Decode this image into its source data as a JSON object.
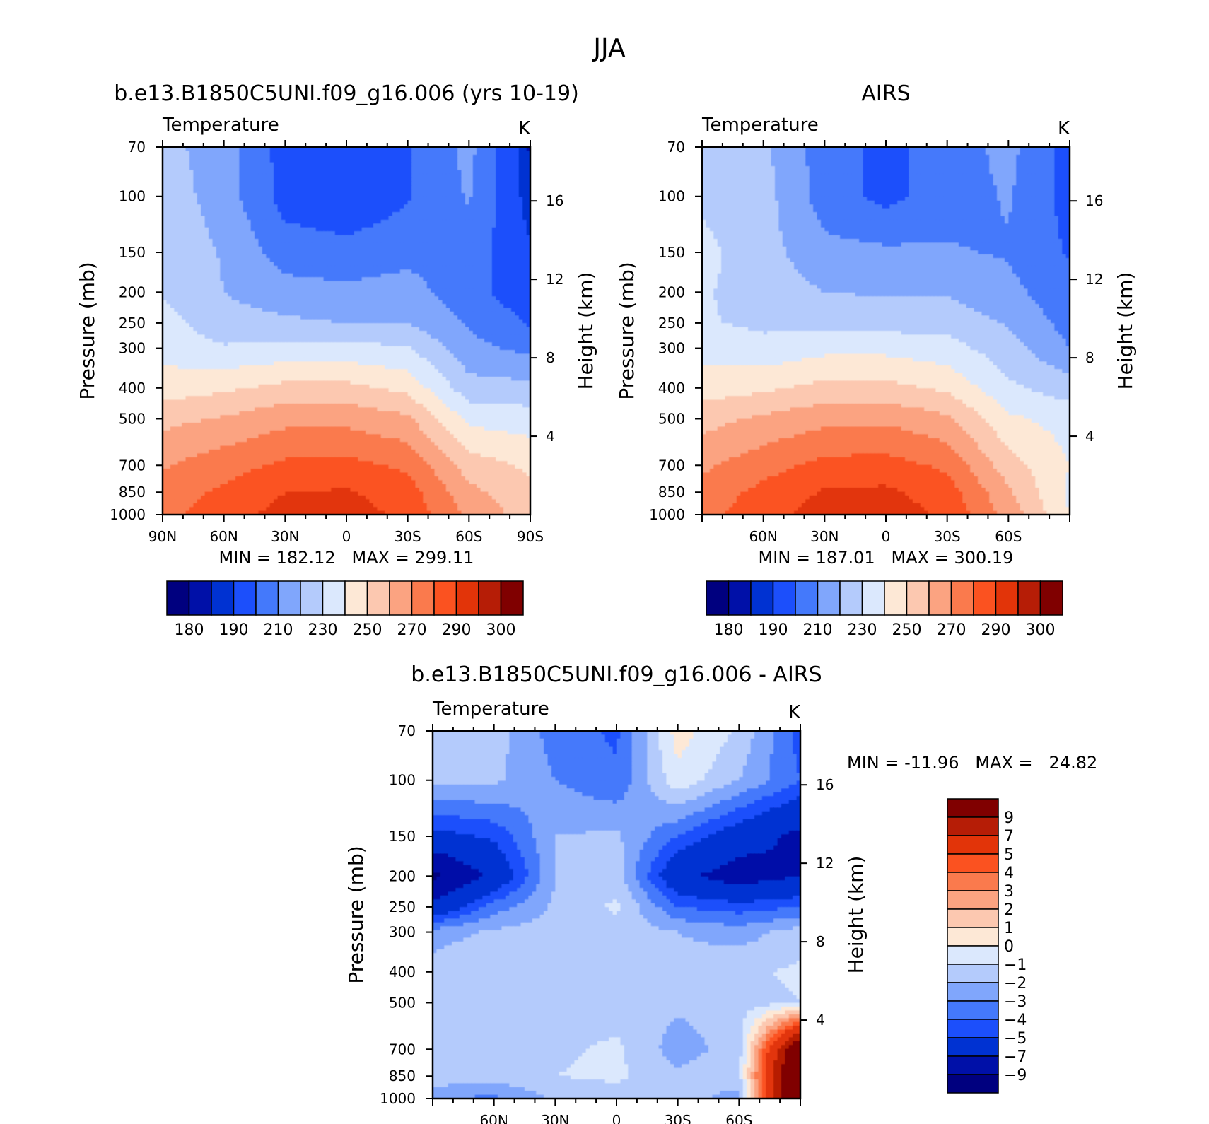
{
  "page": {
    "title": "JJA"
  },
  "chart_data": [
    {
      "type": "heatmap",
      "title": "b.e13.B1850C5UNI.f09_g16.006 (yrs 10-19)",
      "subtitle_left": "Temperature",
      "subtitle_right": "K",
      "xlabel": "",
      "ylabel": "Pressure (mb)",
      "y2label": "Height (km)",
      "x_tick_labels": [
        "90N",
        "60N",
        "30N",
        "0",
        "30S",
        "60S",
        "90S"
      ],
      "x_tick_values": [
        90,
        60,
        30,
        0,
        -30,
        -60,
        -90
      ],
      "y_tick_labels": [
        "70",
        "100",
        "150",
        "200",
        "250",
        "300",
        "400",
        "500",
        "700",
        "850",
        "1000"
      ],
      "y_tick_values": [
        70,
        100,
        150,
        200,
        250,
        300,
        400,
        500,
        700,
        850,
        1000
      ],
      "y2_tick_labels": [
        "4",
        "8",
        "12",
        "16"
      ],
      "y2_tick_values": [
        4,
        8,
        12,
        16
      ],
      "xlim": [
        90,
        -90
      ],
      "ylim": [
        1000,
        70
      ],
      "y_scale": "log",
      "stats_text": "MIN = 182.12   MAX = 299.11",
      "min": 182.12,
      "max": 299.11,
      "colorbar_labels": [
        "180",
        "190",
        "210",
        "230",
        "250",
        "270",
        "290",
        "300"
      ],
      "levels": [
        180,
        185,
        190,
        200,
        210,
        220,
        230,
        240,
        250,
        260,
        270,
        280,
        290,
        295,
        300
      ],
      "colors": [
        "#00007f",
        "#0010a8",
        "#0032d2",
        "#1c4ffb",
        "#4479fb",
        "#80a6fc",
        "#b4cbfc",
        "#dbe8fd",
        "#fde8d6",
        "#fcc8b0",
        "#fba381",
        "#fa7a4d",
        "#fb5220",
        "#e23409",
        "#b61d06",
        "#800000"
      ],
      "field": "model",
      "x": [
        90,
        60,
        30,
        0,
        -30,
        -60,
        -90
      ],
      "y": [
        70,
        100,
        150,
        200,
        250,
        300,
        400,
        500,
        700,
        850,
        1000
      ],
      "z": [
        [
          224,
          214,
          196,
          191,
          199,
          213,
          184
        ],
        [
          226,
          215,
          196,
          191,
          199,
          211,
          186
        ],
        [
          228,
          219,
          205,
          204,
          207,
          205,
          191
        ],
        [
          229,
          220,
          214,
          212,
          214,
          204,
          193
        ],
        [
          234,
          224,
          222,
          220,
          220,
          209,
          199
        ],
        [
          236,
          231,
          233,
          233,
          231,
          213,
          207
        ],
        [
          245,
          248,
          253,
          253,
          247,
          224,
          223
        ],
        [
          257,
          261,
          267,
          267,
          262,
          237,
          235
        ],
        [
          269,
          276,
          282,
          283,
          278,
          255,
          248
        ],
        [
          275,
          282,
          290,
          291,
          285,
          263,
          252
        ],
        [
          277,
          285,
          294,
          295,
          287,
          268,
          255
        ]
      ]
    },
    {
      "type": "heatmap",
      "title": "AIRS",
      "subtitle_left": "Temperature",
      "subtitle_right": "K",
      "xlabel": "",
      "ylabel": "Pressure (mb)",
      "y2label": "Height (km)",
      "x_tick_labels": [
        "60N",
        "30N",
        "0",
        "30S",
        "60S"
      ],
      "x_tick_values": [
        60,
        30,
        0,
        -30,
        -60
      ],
      "y_tick_labels": [
        "70",
        "100",
        "150",
        "200",
        "250",
        "300",
        "400",
        "500",
        "700",
        "850",
        "1000"
      ],
      "y_tick_values": [
        70,
        100,
        150,
        200,
        250,
        300,
        400,
        500,
        700,
        850,
        1000
      ],
      "y2_tick_labels": [
        "4",
        "8",
        "12",
        "16"
      ],
      "y2_tick_values": [
        4,
        8,
        12,
        16
      ],
      "xlim": [
        90,
        -90
      ],
      "ylim": [
        1000,
        70
      ],
      "y_scale": "log",
      "stats_text": "MIN = 187.01   MAX = 300.19",
      "min": 187.01,
      "max": 300.19,
      "colorbar_labels": [
        "180",
        "190",
        "210",
        "230",
        "250",
        "270",
        "290",
        "300"
      ],
      "levels": [
        180,
        185,
        190,
        200,
        210,
        220,
        230,
        240,
        250,
        260,
        270,
        280,
        290,
        295,
        300
      ],
      "colors": [
        "#00007f",
        "#0010a8",
        "#0032d2",
        "#1c4ffb",
        "#4479fb",
        "#80a6fc",
        "#b4cbfc",
        "#dbe8fd",
        "#fde8d6",
        "#fcc8b0",
        "#fba381",
        "#fa7a4d",
        "#fb5220",
        "#e23409",
        "#b61d06",
        "#800000"
      ],
      "field": "obs",
      "x": [
        90,
        60,
        30,
        0,
        -30,
        -60,
        -90
      ],
      "y": [
        70,
        100,
        150,
        200,
        250,
        300,
        400,
        500,
        700,
        850,
        1000
      ],
      "z": [
        [
          226,
          222,
          205,
          197,
          205,
          213,
          195
        ],
        [
          228,
          224,
          205,
          197,
          205,
          211,
          196
        ],
        [
          233,
          224,
          213,
          212,
          211,
          209,
          199
        ],
        [
          231,
          226,
          220,
          219,
          219,
          213,
          203
        ],
        [
          231,
          228,
          227,
          226,
          226,
          219,
          206
        ],
        [
          236,
          233,
          237,
          237,
          234,
          224,
          210
        ],
        [
          245,
          248,
          253,
          253,
          248,
          232,
          225
        ],
        [
          256,
          262,
          267,
          268,
          262,
          242,
          236
        ],
        [
          268,
          276,
          283,
          284,
          278,
          254,
          240
        ],
        [
          274,
          283,
          291,
          292,
          285,
          262,
          238
        ],
        [
          277,
          286,
          295,
          295,
          288,
          266,
          240
        ]
      ]
    },
    {
      "type": "heatmap",
      "title": "b.e13.B1850C5UNI.f09_g16.006 - AIRS",
      "subtitle_left": "Temperature",
      "subtitle_right": "K",
      "xlabel": "",
      "ylabel": "Pressure (mb)",
      "y2label": "Height (km)",
      "x_tick_labels": [
        "60N",
        "30N",
        "0",
        "30S",
        "60S"
      ],
      "x_tick_values": [
        60,
        30,
        0,
        -30,
        -60
      ],
      "y_tick_labels": [
        "70",
        "100",
        "150",
        "200",
        "250",
        "300",
        "400",
        "500",
        "700",
        "850",
        "1000"
      ],
      "y_tick_values": [
        70,
        100,
        150,
        200,
        250,
        300,
        400,
        500,
        700,
        850,
        1000
      ],
      "y2_tick_labels": [
        "4",
        "8",
        "12",
        "16"
      ],
      "y2_tick_values": [
        4,
        8,
        12,
        16
      ],
      "xlim": [
        90,
        -90
      ],
      "ylim": [
        1000,
        70
      ],
      "y_scale": "log",
      "stats_text": "MIN = -11.96   MAX =   24.82",
      "min": -11.96,
      "max": 24.82,
      "colorbar_labels": [
        "9",
        "7",
        "5",
        "4",
        "3",
        "2",
        "1",
        "0",
        "-1",
        "-2",
        "-3",
        "-4",
        "-5",
        "-7",
        "-9"
      ],
      "levels": [
        -9,
        -7,
        -5,
        -4,
        -3,
        -2,
        -1,
        0,
        1,
        2,
        3,
        4,
        5,
        7,
        9
      ],
      "colors": [
        "#00007f",
        "#0010a8",
        "#0032d2",
        "#1c4ffb",
        "#4479fb",
        "#80a6fc",
        "#b4cbfc",
        "#dbe8fd",
        "#fde8d6",
        "#fcc8b0",
        "#fba381",
        "#fa7a4d",
        "#fb5220",
        "#e23409",
        "#b61d06",
        "#800000"
      ],
      "field": "diff",
      "x": [
        90,
        60,
        30,
        0,
        -30,
        -60,
        -90
      ],
      "y": [
        70,
        100,
        150,
        200,
        250,
        300,
        400,
        500,
        700,
        850,
        1000
      ],
      "z": [
        [
          -1.2,
          -1.5,
          -3.5,
          -4.2,
          0.5,
          -1.2,
          -4.5
        ],
        [
          -1.6,
          -1.8,
          -3.0,
          -3.8,
          -0.3,
          -2.0,
          -4.0
        ],
        [
          -5.5,
          -4.8,
          -2.0,
          -1.8,
          -4.0,
          -6.0,
          -7.5
        ],
        [
          -9.5,
          -6.5,
          -2.0,
          -1.5,
          -6.5,
          -8.0,
          -7.0
        ],
        [
          -6.5,
          -3.5,
          -1.8,
          -0.8,
          -4.0,
          -4.5,
          -4.0
        ],
        [
          -2.5,
          -1.8,
          -1.5,
          -1.5,
          -2.0,
          -2.5,
          -1.5
        ],
        [
          -1.5,
          -1.0,
          -1.5,
          -1.2,
          -1.6,
          -1.2,
          -0.8
        ],
        [
          -1.5,
          -1.7,
          -1.6,
          -1.5,
          -1.8,
          -1.5,
          -1.0
        ],
        [
          -1.4,
          -1.8,
          -1.2,
          -0.8,
          -2.5,
          -1.5,
          12.0
        ],
        [
          -1.2,
          -1.6,
          -1.0,
          -0.8,
          -1.8,
          -1.2,
          14.0
        ],
        [
          -3.0,
          -3.2,
          -1.8,
          -1.5,
          -1.5,
          -2.5,
          15.0
        ]
      ]
    }
  ]
}
